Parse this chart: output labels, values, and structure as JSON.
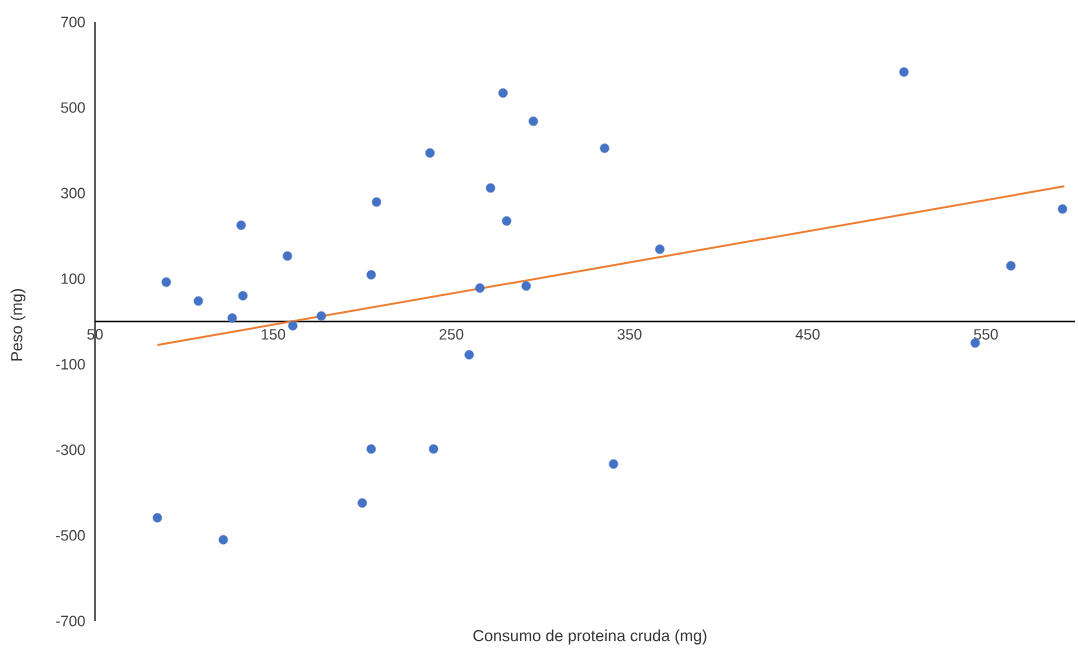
{
  "chart_data": {
    "type": "scatter",
    "xlabel": "Consumo de proteina cruda (mg)",
    "ylabel": "Peso (mg)",
    "xlim": [
      50,
      600
    ],
    "ylim": [
      -700,
      700
    ],
    "xticks": [
      50,
      150,
      250,
      350,
      450,
      550
    ],
    "yticks": [
      -700,
      -500,
      -300,
      -100,
      100,
      300,
      500,
      700
    ],
    "grid": false,
    "series": [
      {
        "marker": "circle",
        "color": "#4472c4",
        "x": [
          90,
          108,
          127,
          133,
          132,
          158,
          161,
          177,
          205,
          208,
          238,
          272,
          279,
          281,
          266,
          292,
          296,
          260,
          336,
          367,
          504,
          564,
          593,
          544,
          85,
          122,
          200,
          205,
          240,
          341
        ],
        "values": [
          92,
          48,
          8,
          60,
          225,
          153,
          -10,
          13,
          109,
          279,
          394,
          312,
          534,
          235,
          78,
          83,
          468,
          -78,
          405,
          169,
          583,
          130,
          263,
          -50,
          -459,
          -510,
          -424,
          -298,
          -298,
          -333
        ]
      },
      {
        "type": "line",
        "marker": "none",
        "color": "#ed7d31",
        "x": [
          85,
          594
        ],
        "values": [
          -55,
          316
        ]
      }
    ]
  }
}
